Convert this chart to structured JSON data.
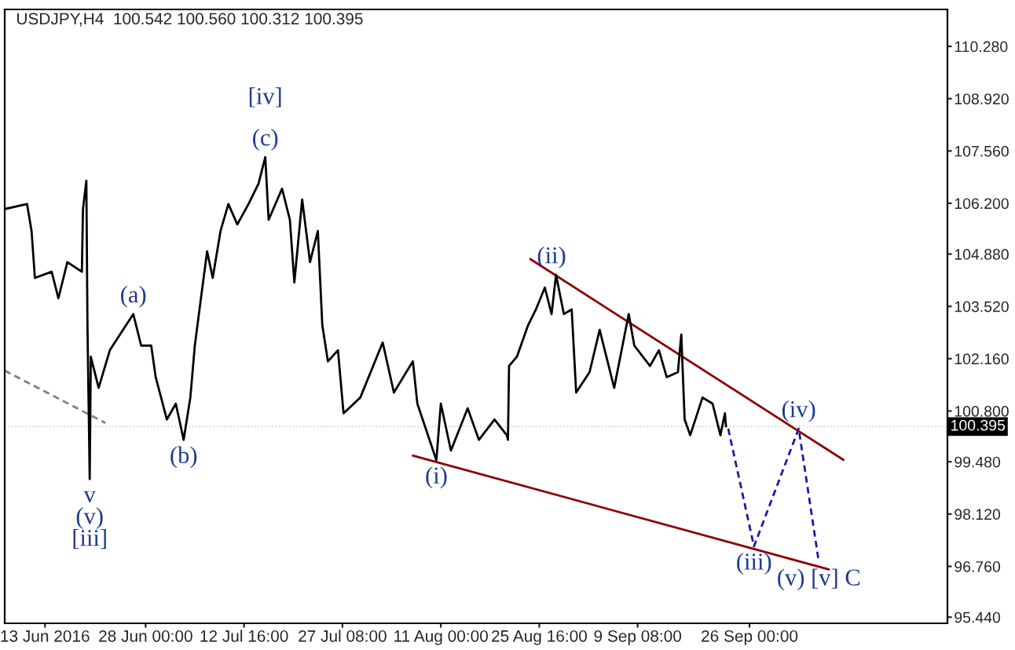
{
  "chart_data": {
    "type": "line",
    "title": "USDJPY,H4  100.542 100.560 100.312 100.395",
    "xlim": [
      "2016-06-07T00:00",
      "2016-10-25T12:00"
    ],
    "ylim": [
      95.28,
      111.24
    ],
    "xticks": [
      {
        "value": "2016-06-13T00:00",
        "label": "13 Jun 2016"
      },
      {
        "value": "2016-06-28T00:00",
        "label": "28 Jun 00:00"
      },
      {
        "value": "2016-07-12T16:00",
        "label": "12 Jul 16:00"
      },
      {
        "value": "2016-07-27T08:00",
        "label": "27 Jul 08:00"
      },
      {
        "value": "2016-08-11T00:00",
        "label": "11 Aug 00:00"
      },
      {
        "value": "2016-08-25T16:00",
        "label": "25 Aug 16:00"
      },
      {
        "value": "2016-09-09T08:00",
        "label": "9 Sep 08:00"
      },
      {
        "value": "2016-09-26T00:00",
        "label": "26 Sep 00:00"
      }
    ],
    "yticks": [
      {
        "value": 95.44,
        "label": "95.440"
      },
      {
        "value": 96.76,
        "label": "96.760"
      },
      {
        "value": 98.12,
        "label": "98.120"
      },
      {
        "value": 99.48,
        "label": "99.480"
      },
      {
        "value": 100.8,
        "label": "100.800"
      },
      {
        "value": 102.16,
        "label": "102.160"
      },
      {
        "value": 103.52,
        "label": "103.520"
      },
      {
        "value": 104.88,
        "label": "104.880"
      },
      {
        "value": 106.2,
        "label": "106.200"
      },
      {
        "value": 107.56,
        "label": "107.560"
      },
      {
        "value": 108.92,
        "label": "108.920"
      },
      {
        "value": 110.28,
        "label": "110.280"
      }
    ],
    "ref_lines": [
      {
        "axis": "y",
        "value": 100.395,
        "label": "100.395"
      }
    ],
    "series": [
      {
        "color": "#000000",
        "line_style": "solid",
        "x": [
          "2016-06-07T00:00",
          "2016-06-10T08:00",
          "2016-06-11T00:00",
          "2016-06-11T12:00",
          "2016-06-14T00:00",
          "2016-06-15T00:00",
          "2016-06-16T08:00",
          "2016-06-18T12:00",
          "2016-06-18T16:00",
          "2016-06-19T04:00",
          "2016-06-19T08:00",
          "2016-06-19T16:00",
          "2016-06-19T20:00",
          "2016-06-21T00:00",
          "2016-06-22T16:00",
          "2016-06-26T04:00",
          "2016-06-27T08:00",
          "2016-06-28T20:00",
          "2016-06-29T12:00",
          "2016-07-01T04:00",
          "2016-07-02T12:00",
          "2016-07-03T16:00",
          "2016-07-04T16:00",
          "2016-07-05T08:00",
          "2016-07-06T08:00",
          "2016-07-07T04:00",
          "2016-07-08T00:00",
          "2016-07-09T04:00",
          "2016-07-10T08:00",
          "2016-07-11T16:00",
          "2016-07-13T08:00",
          "2016-07-14T20:00",
          "2016-07-15T20:00",
          "2016-07-16T08:00",
          "2016-07-18T08:00",
          "2016-07-19T12:00",
          "2016-07-20T04:00",
          "2016-07-21T08:00",
          "2016-07-22T12:00",
          "2016-07-23T16:00",
          "2016-07-24T08:00",
          "2016-07-25T04:00",
          "2016-07-26T16:00",
          "2016-07-27T12:00",
          "2016-07-30T00:00",
          "2016-08-02T08:00",
          "2016-08-04T00:00",
          "2016-08-06T20:00",
          "2016-08-07T12:00",
          "2016-08-10T08:00",
          "2016-08-11T00:00",
          "2016-08-12T12:00",
          "2016-08-15T00:00",
          "2016-08-16T16:00",
          "2016-08-19T00:00",
          "2016-08-20T20:00",
          "2016-08-21T00:00",
          "2016-08-21T04:00",
          "2016-08-22T08:00",
          "2016-08-24T00:00",
          "2016-08-25T04:00",
          "2016-08-26T12:00",
          "2016-08-27T12:00",
          "2016-08-28T04:00",
          "2016-08-29T08:00",
          "2016-08-30T12:00",
          "2016-08-31T04:00",
          "2016-09-02T04:00",
          "2016-09-03T16:00",
          "2016-09-05T20:00",
          "2016-09-08T00:00",
          "2016-09-08T20:00",
          "2016-09-11T04:00",
          "2016-09-12T12:00",
          "2016-09-13T16:00",
          "2016-09-15T08:00",
          "2016-09-15T20:00",
          "2016-09-16T08:00",
          "2016-09-17T04:00",
          "2016-09-19T00:00",
          "2016-09-20T12:00",
          "2016-09-21T16:00",
          "2016-09-22T08:00",
          "2016-09-22T12:00"
        ],
        "values": [
          106.05,
          106.18,
          105.48,
          104.26,
          104.42,
          103.73,
          104.67,
          104.42,
          106.05,
          106.79,
          103.03,
          99.03,
          102.21,
          101.4,
          102.38,
          103.32,
          102.5,
          102.5,
          101.68,
          100.58,
          100.99,
          100.05,
          101.15,
          102.5,
          103.85,
          104.95,
          104.26,
          105.48,
          106.18,
          105.65,
          106.18,
          106.71,
          107.4,
          105.77,
          106.58,
          105.77,
          104.14,
          106.3,
          104.67,
          105.48,
          103.03,
          102.09,
          102.38,
          100.74,
          101.15,
          102.58,
          101.28,
          102.09,
          100.99,
          99.52,
          100.99,
          99.77,
          100.87,
          100.05,
          100.58,
          100.17,
          100.05,
          101.97,
          102.21,
          103.03,
          103.44,
          104.01,
          103.32,
          104.34,
          103.32,
          103.44,
          101.28,
          101.81,
          102.91,
          101.4,
          103.32,
          102.5,
          101.97,
          102.38,
          101.68,
          101.81,
          102.79,
          100.58,
          100.17,
          101.15,
          100.99,
          100.17,
          100.74,
          100.4
        ]
      },
      {
        "color": "#1a1aa6",
        "line_style": "dashed",
        "x": [
          "2016-09-22T20:00",
          "2016-09-26T16:00",
          "2016-10-03T08:00",
          "2016-10-06T08:00"
        ],
        "values": [
          100.34,
          97.28,
          100.34,
          96.87
        ]
      },
      {
        "color": "#8b0000",
        "line_style": "solid",
        "x": [
          "2016-08-24T08:00",
          "2016-10-10T00:00"
        ],
        "values": [
          104.75,
          99.53
        ]
      },
      {
        "color": "#8b0000",
        "line_style": "solid",
        "x": [
          "2016-08-06T20:00",
          "2016-10-07T20:00"
        ],
        "values": [
          99.64,
          96.68
        ]
      },
      {
        "color": "#808080",
        "line_style": "dashed",
        "x": [
          "2016-06-07T00:00",
          "2016-06-22T00:00"
        ],
        "values": [
          101.85,
          100.49
        ]
      }
    ],
    "annotations": [
      {
        "text": "(c)",
        "x": "2016-07-15T20:00",
        "y": 107.4
      },
      {
        "text": "[iv]",
        "x": "2016-07-15T20:00",
        "y": 107.4
      },
      {
        "text": "(a)",
        "x": "2016-06-26T04:00",
        "y": 103.32
      },
      {
        "text": "(b)",
        "x": "2016-07-03T16:00",
        "y": 100.05
      },
      {
        "text": "v\n(v)\n[iii]",
        "x": "2016-06-19T16:00",
        "y": 99.03
      },
      {
        "text": "(i)",
        "x": "2016-08-10T08:00",
        "y": 99.52
      },
      {
        "text": "(ii)",
        "x": "2016-08-27T12:00",
        "y": 104.34
      },
      {
        "text": "(iv)",
        "x": "2016-10-03T08:00",
        "y": 100.34
      },
      {
        "text": "(iii)",
        "x": "2016-09-26T16:00",
        "y": 97.28
      },
      {
        "text": "(v) [v] C",
        "x": "2016-10-06T08:00",
        "y": 96.87
      }
    ]
  }
}
